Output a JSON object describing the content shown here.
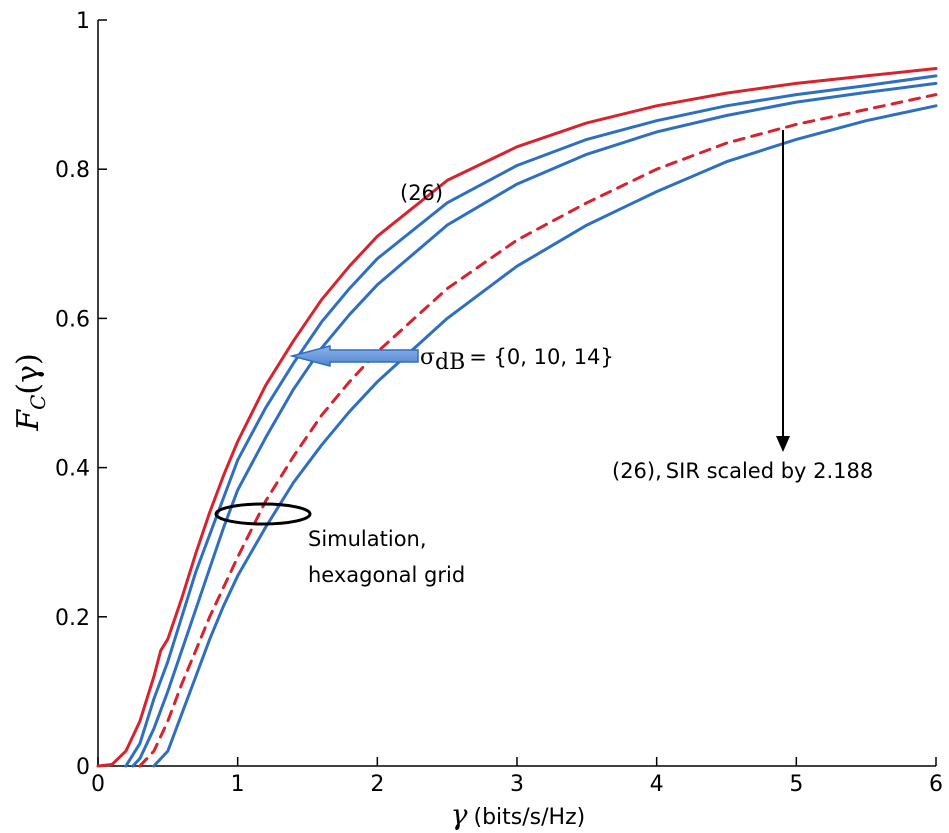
{
  "chart_data": {
    "type": "line",
    "title": "",
    "xlabel": {
      "symbol": "γ",
      "unit": "(bits/s/Hz)"
    },
    "ylabel": {
      "main": "F",
      "sub": "C",
      "arg": "(γ)"
    },
    "xlim": [
      0,
      6
    ],
    "ylim": [
      0,
      1
    ],
    "xticks": [
      "0",
      "1",
      "2",
      "3",
      "4",
      "5",
      "6"
    ],
    "yticks": [
      "0",
      "0.2",
      "0.4",
      "0.6",
      "0.8",
      "1"
    ],
    "grid": false,
    "legend": "none",
    "series": [
      {
        "color": "#d7232d",
        "style": "solid",
        "x": [
          0,
          0.1,
          0.2,
          0.3,
          0.4,
          0.45,
          0.5,
          0.6,
          0.7,
          0.8,
          0.9,
          1.0,
          1.2,
          1.4,
          1.6,
          1.8,
          2.0,
          2.5,
          3.0,
          3.5,
          4.0,
          4.5,
          5.0,
          5.5,
          6.0
        ],
        "y": [
          0,
          0.002,
          0.02,
          0.06,
          0.12,
          0.155,
          0.17,
          0.225,
          0.285,
          0.34,
          0.39,
          0.435,
          0.51,
          0.57,
          0.625,
          0.67,
          0.71,
          0.785,
          0.83,
          0.862,
          0.885,
          0.902,
          0.915,
          0.925,
          0.935
        ]
      },
      {
        "color": "#2f6fc1",
        "style": "solid",
        "x": [
          0.2,
          0.3,
          0.4,
          0.5,
          0.6,
          0.7,
          0.8,
          0.9,
          1.0,
          1.2,
          1.4,
          1.6,
          1.8,
          2.0,
          2.5,
          3.0,
          3.5,
          4.0,
          4.5,
          5.0,
          5.5,
          6.0
        ],
        "y": [
          0.0,
          0.03,
          0.09,
          0.14,
          0.2,
          0.26,
          0.31,
          0.36,
          0.41,
          0.48,
          0.54,
          0.595,
          0.64,
          0.68,
          0.755,
          0.805,
          0.84,
          0.865,
          0.885,
          0.9,
          0.912,
          0.925
        ]
      },
      {
        "color": "#2f6fc1",
        "style": "solid",
        "x": [
          0.25,
          0.3,
          0.4,
          0.5,
          0.6,
          0.7,
          0.8,
          0.9,
          1.0,
          1.2,
          1.4,
          1.6,
          1.8,
          2.0,
          2.5,
          3.0,
          3.5,
          4.0,
          4.5,
          5.0,
          5.5,
          6.0
        ],
        "y": [
          0.0,
          0.01,
          0.05,
          0.1,
          0.155,
          0.21,
          0.265,
          0.32,
          0.37,
          0.44,
          0.505,
          0.56,
          0.605,
          0.645,
          0.725,
          0.78,
          0.82,
          0.85,
          0.872,
          0.89,
          0.903,
          0.915
        ]
      },
      {
        "color": "#2f6fc1",
        "style": "solid",
        "x": [
          0.4,
          0.5,
          0.6,
          0.7,
          0.8,
          0.9,
          1.0,
          1.2,
          1.4,
          1.6,
          1.8,
          2.0,
          2.5,
          3.0,
          3.5,
          4.0,
          4.5,
          5.0,
          5.5,
          6.0
        ],
        "y": [
          0.0,
          0.02,
          0.07,
          0.12,
          0.17,
          0.215,
          0.255,
          0.32,
          0.38,
          0.43,
          0.475,
          0.515,
          0.6,
          0.67,
          0.725,
          0.77,
          0.81,
          0.84,
          0.865,
          0.885
        ]
      },
      {
        "color": "#d7232d",
        "style": "dashed",
        "x": [
          0.3,
          0.4,
          0.5,
          0.6,
          0.7,
          0.8,
          0.9,
          1.0,
          1.2,
          1.4,
          1.6,
          1.8,
          2.0,
          2.5,
          3.0,
          3.5,
          4.0,
          4.5,
          5.0,
          5.5,
          6.0
        ],
        "y": [
          0.0,
          0.02,
          0.06,
          0.11,
          0.155,
          0.2,
          0.24,
          0.28,
          0.355,
          0.415,
          0.47,
          0.515,
          0.555,
          0.64,
          0.705,
          0.755,
          0.8,
          0.835,
          0.86,
          0.88,
          0.9
        ]
      }
    ],
    "annotations": {
      "label_26": "(26)",
      "sigma_symbol": "σ",
      "sigma_sub": "dB",
      "sigma_values": "= {0, 10, 14}",
      "scaled_prefix": "(26),",
      "scaled_text": "SIR scaled by 2.188",
      "simulation_line1": "Simulation,",
      "simulation_line2": "hexagonal grid"
    }
  }
}
